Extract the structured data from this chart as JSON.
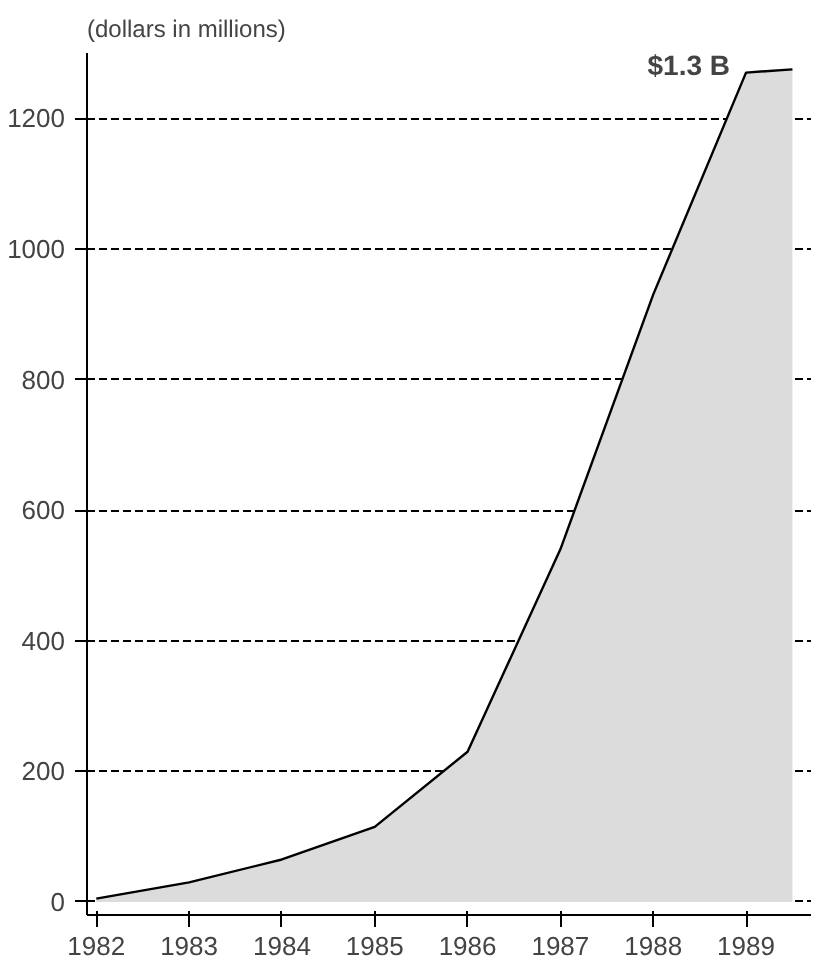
{
  "chart_data": {
    "type": "area",
    "ylabel": "(dollars in millions)",
    "x": [
      1982,
      1983,
      1984,
      1985,
      1986,
      1987,
      1988,
      1989,
      1989.5
    ],
    "series": [
      {
        "color": "#dcdcdc",
        "values": [
          5,
          30,
          65,
          115,
          230,
          540,
          930,
          1270,
          1275
        ]
      }
    ],
    "xlim": [
      1981.9,
      1989.7
    ],
    "xticks": [
      1982,
      1983,
      1984,
      1985,
      1986,
      1987,
      1988,
      1989
    ],
    "ylim": [
      -20,
      1300
    ],
    "yticks": [
      0,
      200,
      400,
      600,
      800,
      1000,
      1200
    ],
    "grid": "y",
    "annotations": [
      {
        "text": "$1.3 B",
        "x": 1989,
        "y": 1270
      }
    ]
  }
}
